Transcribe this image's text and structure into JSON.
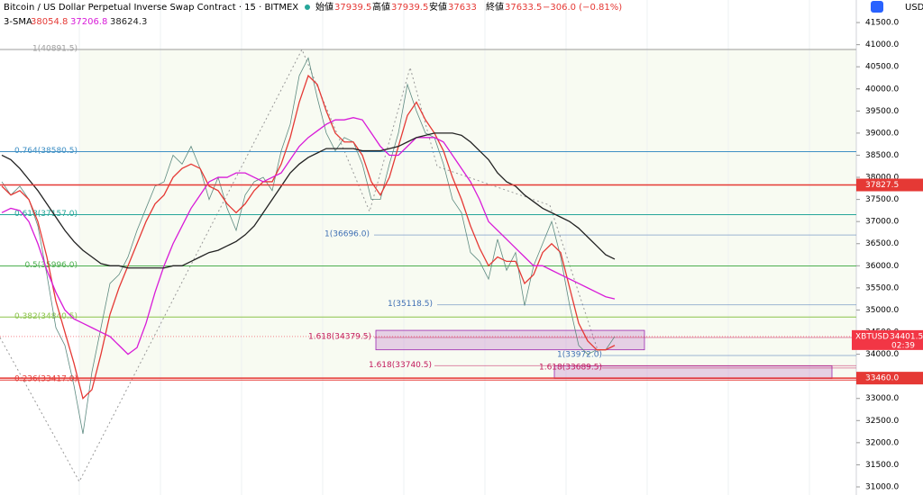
{
  "header": {
    "title": "Bitcoin / US Dollar Perpetual Inverse Swap Contract · 15 · BITMEX",
    "ohlc": [
      {
        "label": "始値",
        "value": 37939.5
      },
      {
        "label": "高値",
        "value": 37939.5
      },
      {
        "label": "安値",
        "value": 37633.0
      },
      {
        "label": "終値",
        "value": 37633.5
      }
    ],
    "change": "−306.0 (−0.81%)"
  },
  "indicator": {
    "name": "3-SMA",
    "values": [
      38054.8,
      37206.8,
      38624.3
    ],
    "colors": [
      "#e53935",
      "#d81bd8",
      "#222222"
    ]
  },
  "chart_data": {
    "type": "line",
    "currency": "USD",
    "ylim": [
      30817,
      42010
    ],
    "yticks": [
      {
        "value": 31000,
        "label": "31000.0"
      },
      {
        "value": 31500,
        "label": "31500.0"
      },
      {
        "value": 32000,
        "label": "32000.0"
      },
      {
        "value": 32500,
        "label": "32500.0"
      },
      {
        "value": 33000,
        "label": "33000.0"
      },
      {
        "value": 33500,
        "label": "33500.0"
      },
      {
        "value": 34000,
        "label": "34000.0"
      },
      {
        "value": 34500,
        "label": "34500.0"
      },
      {
        "value": 35000,
        "label": "35000.0"
      },
      {
        "value": 35500,
        "label": "35500.0"
      },
      {
        "value": 36000,
        "label": "36000.0"
      },
      {
        "value": 36500,
        "label": "36500.0"
      },
      {
        "value": 37000,
        "label": "37000.0"
      },
      {
        "value": 37500,
        "label": "37500.0"
      },
      {
        "value": 38000,
        "label": "38000.0"
      },
      {
        "value": 38500,
        "label": "38500.0"
      },
      {
        "value": 39000,
        "label": "39000.0"
      },
      {
        "value": 39500,
        "label": "39500.0"
      },
      {
        "value": 40000,
        "label": "40000.0"
      },
      {
        "value": 40500,
        "label": "40500.0"
      },
      {
        "value": 41000,
        "label": "41000.0"
      },
      {
        "value": 41500,
        "label": "41500.0"
      }
    ],
    "series": [
      {
        "color": "#5d8a80",
        "values": [
          37900,
          37600,
          37800,
          37500,
          36900,
          35800,
          34600,
          34200,
          33300,
          32200,
          33600,
          34600,
          35600,
          35800,
          36200,
          36800,
          37300,
          37800,
          37900,
          38500,
          38300,
          38700,
          38200,
          37500,
          38000,
          37300,
          36800,
          37600,
          37900,
          38000,
          37700,
          38600,
          39200,
          40300,
          40700,
          39800,
          39000,
          38600,
          38900,
          38800,
          38300,
          37500,
          37500,
          38300,
          39000,
          40100,
          39500,
          39000,
          38900,
          38300,
          37500,
          37200,
          36300,
          36100,
          35700,
          36600,
          35900,
          36300,
          35100,
          36000,
          36500,
          37000,
          36200,
          35100,
          34200,
          34000,
          34100,
          34100,
          34400
        ]
      },
      {
        "color": "#e53935",
        "values": [
          37800,
          37600,
          37700,
          37500,
          37000,
          36200,
          35200,
          34500,
          33800,
          33000,
          33200,
          34000,
          34900,
          35500,
          36000,
          36500,
          37000,
          37400,
          37600,
          38000,
          38200,
          38300,
          38200,
          37800,
          37700,
          37400,
          37200,
          37400,
          37700,
          37900,
          37900,
          38300,
          38900,
          39700,
          40300,
          40100,
          39500,
          39000,
          38800,
          38800,
          38500,
          37900,
          37600,
          38000,
          38700,
          39400,
          39700,
          39300,
          39000,
          38600,
          38000,
          37500,
          36900,
          36400,
          36000,
          36200,
          36100,
          36100,
          35600,
          35800,
          36300,
          36500,
          36300,
          35500,
          34700,
          34300,
          34100,
          34100,
          34200
        ]
      },
      {
        "color": "#d81bd8",
        "values": [
          37200,
          37300,
          37250,
          37000,
          36500,
          35900,
          35400,
          35000,
          34800,
          34700,
          34600,
          34500,
          34400,
          34200,
          34000,
          34150,
          34700,
          35400,
          36000,
          36500,
          36900,
          37300,
          37600,
          37900,
          38000,
          38000,
          38100,
          38100,
          38000,
          37900,
          38000,
          38100,
          38400,
          38700,
          38900,
          39050,
          39200,
          39300,
          39300,
          39350,
          39300,
          39000,
          38700,
          38500,
          38500,
          38700,
          38900,
          38900,
          38900,
          38800,
          38500,
          38200,
          37900,
          37500,
          37000,
          36800,
          36600,
          36400,
          36200,
          36000,
          36000,
          35900,
          35800,
          35700,
          35600,
          35500,
          35400,
          35300,
          35250
        ]
      },
      {
        "color": "#222222",
        "values": [
          38500,
          38400,
          38200,
          37950,
          37700,
          37400,
          37100,
          36800,
          36550,
          36350,
          36200,
          36050,
          36000,
          36000,
          35950,
          35950,
          35950,
          35950,
          35950,
          36000,
          36000,
          36100,
          36200,
          36300,
          36350,
          36450,
          36550,
          36700,
          36900,
          37200,
          37500,
          37800,
          38100,
          38300,
          38450,
          38550,
          38650,
          38650,
          38650,
          38650,
          38600,
          38600,
          38600,
          38650,
          38700,
          38800,
          38900,
          38950,
          39000,
          39000,
          39000,
          38950,
          38800,
          38600,
          38400,
          38100,
          37900,
          37800,
          37600,
          37450,
          37300,
          37200,
          37100,
          37000,
          36850,
          36650,
          36450,
          36250,
          36150
        ]
      }
    ],
    "levels": [
      {
        "label": "1(40891.5)",
        "value": 40891.5,
        "color": "#9e9e9e"
      },
      {
        "label": "0.764(38580.5)",
        "value": 38580.5,
        "color": "#3f8fc4"
      },
      {
        "label": "0.618(37157.0)",
        "value": 37157.0,
        "color": "#26a69a"
      },
      {
        "label": "0.5(35996.0)",
        "value": 35996.0,
        "color": "#4caf50"
      },
      {
        "label": "0.382(34840.5)",
        "value": 34840.5,
        "color": "#8bc34a"
      },
      {
        "label": "0.236(33417.0)",
        "value": 33417.0,
        "color": "#e53935"
      }
    ],
    "annotations": [
      {
        "label": "1(36696.0)",
        "value": 36696.0,
        "color": "#3f6fb4"
      },
      {
        "label": "1(35118.5)",
        "value": 35118.5,
        "color": "#3f6fb4"
      },
      {
        "label": "1.618(34379.5)",
        "value": 34379.5,
        "color": "#c2185b"
      },
      {
        "label": "1(33972.0)",
        "value": 33972.0,
        "color": "#3f6fb4"
      },
      {
        "label": "1.618(33740.5)",
        "value": 33740.5,
        "color": "#c2185b"
      },
      {
        "label": "1.618(33689.5)",
        "value": 33689.5,
        "color": "#c2185b"
      }
    ],
    "boxes": [
      {
        "top": 34540,
        "bottom": 34100
      },
      {
        "top": 33740,
        "bottom": 33450
      }
    ],
    "price_lines": [
      {
        "value": 37827.5,
        "label": "37827.5",
        "color": "#e53935"
      },
      {
        "value": 33460,
        "label": "33460.0",
        "color": "#e53935"
      }
    ],
    "last_price": {
      "symbol": "XBTUSD",
      "value": 34401.5,
      "countdown": "02:39",
      "color": "#f23645"
    }
  }
}
